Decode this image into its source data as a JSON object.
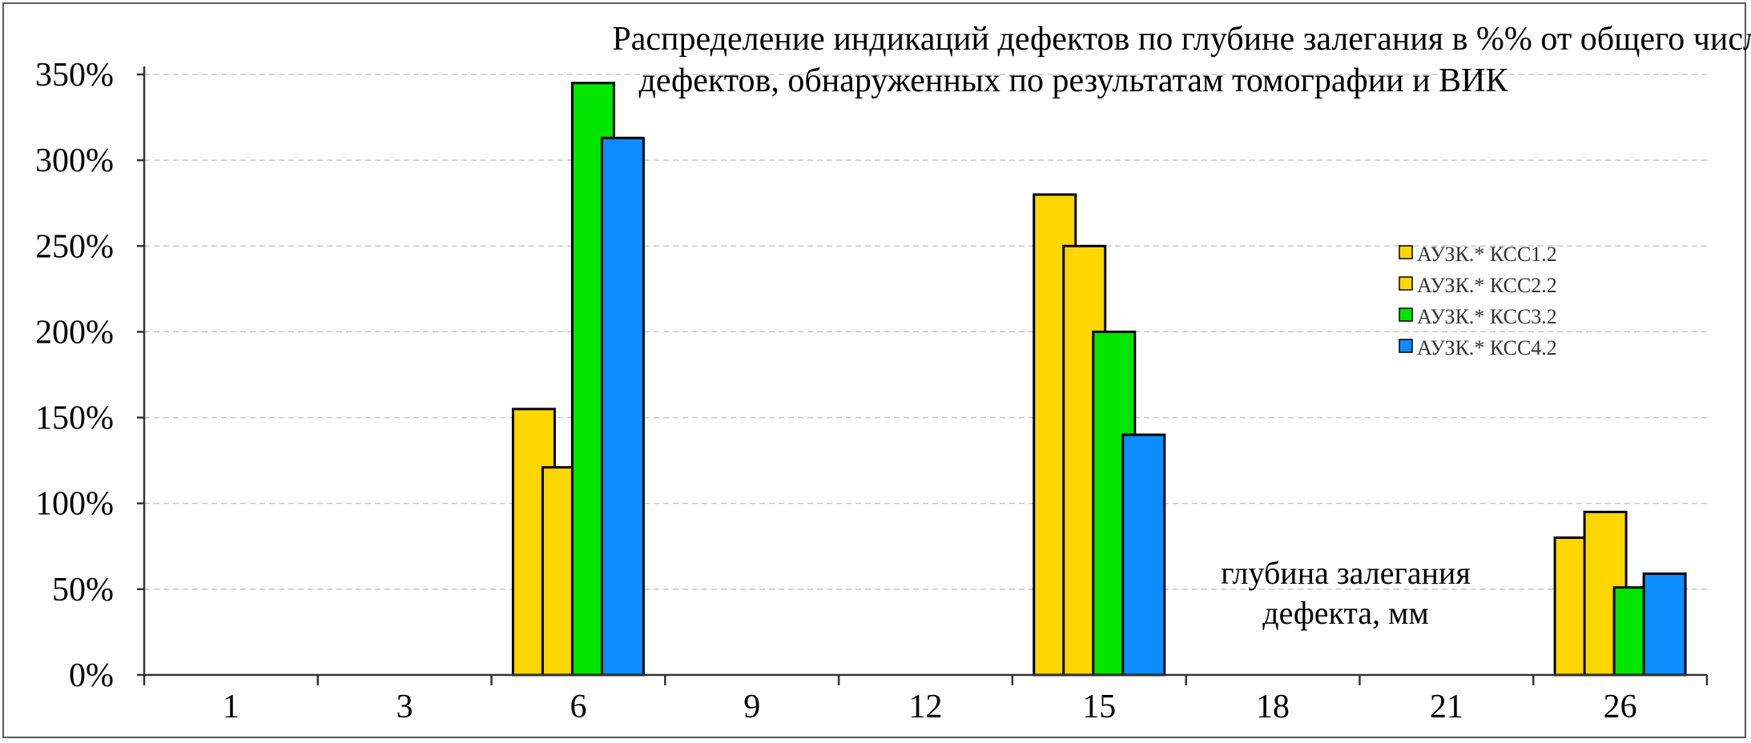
{
  "chart_data": {
    "type": "bar",
    "title_lines": [
      "Распределение индикаций дефектов по глубине залегания в %% от общего числа",
      "дефектов, обнаруженных по результатам томографии и ВИК"
    ],
    "xlabel_lines": [
      "глубина залегания",
      "дефекта, мм"
    ],
    "ylabel": "",
    "categories": [
      "1",
      "3",
      "6",
      "9",
      "12",
      "15",
      "18",
      "21",
      "26"
    ],
    "ylim": [
      0,
      3.5
    ],
    "yticks": [
      0,
      0.5,
      1.0,
      1.5,
      2.0,
      2.5,
      3.0,
      3.5
    ],
    "ytick_labels": [
      "0%",
      "50%",
      "100%",
      "150%",
      "200%",
      "250%",
      "300%",
      "350%"
    ],
    "grid": true,
    "legend_position": "right",
    "series": [
      {
        "name": "АУЗК.* КСС1.2",
        "color": "#FFD700",
        "values": [
          0,
          0,
          1.55,
          0,
          0,
          2.8,
          0,
          0,
          0.8
        ]
      },
      {
        "name": "АУЗК.* КСС2.2",
        "color": "#FFD700",
        "values": [
          0,
          0,
          1.21,
          0,
          0,
          2.5,
          0,
          0,
          0.95
        ]
      },
      {
        "name": "АУЗК.* КСС3.2",
        "color": "#00E600",
        "values": [
          0,
          0,
          3.45,
          0,
          0,
          2.0,
          0,
          0,
          0.51
        ]
      },
      {
        "name": "АУЗК.* КСС4.2",
        "color": "#0D8DFF",
        "values": [
          0,
          0,
          3.13,
          0,
          0,
          1.4,
          0,
          0,
          0.59
        ]
      }
    ]
  }
}
